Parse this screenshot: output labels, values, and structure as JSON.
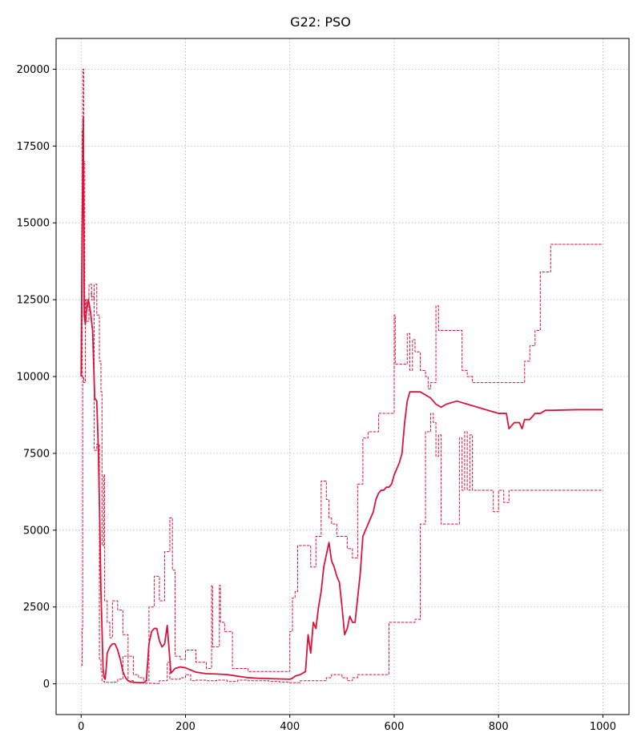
{
  "chart_data": {
    "type": "line",
    "title": "G22: PSO",
    "xlabel": "",
    "ylabel": "",
    "xlim": [
      -48,
      1050
    ],
    "ylim": [
      -1000,
      21000
    ],
    "grid": true,
    "line_color": "#dc143c",
    "x_ticks": [
      {
        "value": 0,
        "label": "0"
      },
      {
        "value": 200,
        "label": "200"
      },
      {
        "value": 400,
        "label": "400"
      },
      {
        "value": 600,
        "label": "600"
      },
      {
        "value": 800,
        "label": "800"
      },
      {
        "value": 1000,
        "label": "1000"
      }
    ],
    "y_ticks": [
      {
        "value": 0,
        "label": "0"
      },
      {
        "value": 2500,
        "label": "2500"
      },
      {
        "value": 5000,
        "label": "5000"
      },
      {
        "value": 7500,
        "label": "7500"
      },
      {
        "value": 10000,
        "label": "10000"
      },
      {
        "value": 12500,
        "label": "12500"
      },
      {
        "value": 15000,
        "label": "15000"
      },
      {
        "value": 17500,
        "label": "17500"
      },
      {
        "value": 20000,
        "label": "20000"
      }
    ],
    "series": [
      {
        "role": "mean",
        "style": "solid",
        "step": false,
        "x": [
          0,
          2,
          4,
          6,
          8,
          10,
          14,
          18,
          22,
          26,
          30,
          33,
          36,
          38,
          40,
          42,
          44,
          46,
          48,
          50,
          55,
          60,
          65,
          70,
          75,
          80,
          85,
          90,
          95,
          100,
          110,
          120,
          125,
          130,
          135,
          140,
          145,
          150,
          155,
          160,
          165,
          170,
          172,
          175,
          180,
          190,
          200,
          210,
          220,
          240,
          260,
          280,
          300,
          320,
          340,
          360,
          380,
          400,
          405,
          410,
          420,
          430,
          435,
          440,
          445,
          450,
          455,
          460,
          465,
          470,
          475,
          480,
          485,
          490,
          495,
          500,
          505,
          510,
          515,
          520,
          525,
          530,
          535,
          540,
          545,
          550,
          555,
          560,
          565,
          570,
          575,
          580,
          585,
          590,
          595,
          600,
          605,
          610,
          615,
          620,
          625,
          630,
          640,
          650,
          660,
          670,
          680,
          690,
          700,
          720,
          740,
          760,
          780,
          800,
          810,
          815,
          820,
          830,
          840,
          845,
          850,
          860,
          870,
          880,
          890,
          900,
          950,
          1000
        ],
        "y": [
          10000,
          15000,
          18400,
          12000,
          11700,
          12100,
          12500,
          12100,
          11500,
          9300,
          9200,
          7600,
          5000,
          3000,
          1800,
          500,
          200,
          150,
          500,
          1000,
          1200,
          1300,
          1300,
          1100,
          800,
          400,
          200,
          100,
          60,
          50,
          40,
          40,
          100,
          1300,
          1700,
          1800,
          1800,
          1400,
          1200,
          1300,
          1900,
          800,
          350,
          400,
          500,
          550,
          520,
          450,
          380,
          330,
          320,
          300,
          250,
          200,
          180,
          170,
          160,
          150,
          180,
          250,
          300,
          400,
          1600,
          1000,
          2000,
          1800,
          2500,
          3000,
          3800,
          4200,
          4600,
          4000,
          3800,
          3500,
          3300,
          2500,
          1600,
          1800,
          2200,
          2000,
          2000,
          2800,
          3600,
          4800,
          5000,
          5200,
          5400,
          5600,
          6000,
          6200,
          6300,
          6300,
          6400,
          6400,
          6500,
          6800,
          7000,
          7200,
          7500,
          8500,
          9200,
          9500,
          9500,
          9500,
          9400,
          9300,
          9100,
          9000,
          9100,
          9200,
          9100,
          9000,
          8900,
          8800,
          8800,
          8800,
          8300,
          8500,
          8500,
          8300,
          8600,
          8600,
          8800,
          8800,
          8900,
          8900,
          8920,
          8920
        ]
      },
      {
        "role": "upper",
        "style": "dashed",
        "step": true,
        "x": [
          0,
          2,
          3,
          5,
          7,
          10,
          15,
          20,
          25,
          30,
          35,
          38,
          40,
          43,
          45,
          50,
          55,
          60,
          70,
          80,
          90,
          100,
          110,
          120,
          130,
          140,
          150,
          160,
          170,
          175,
          180,
          190,
          200,
          220,
          240,
          250,
          252,
          265,
          267,
          275,
          290,
          320,
          340,
          360,
          380,
          400,
          405,
          410,
          415,
          420,
          430,
          440,
          450,
          460,
          470,
          475,
          480,
          490,
          500,
          510,
          520,
          530,
          540,
          550,
          560,
          570,
          580,
          590,
          600,
          602,
          605,
          610,
          620,
          625,
          630,
          635,
          640,
          650,
          660,
          665,
          670,
          680,
          685,
          690,
          700,
          720,
          730,
          740,
          750,
          760,
          780,
          800,
          820,
          840,
          850,
          860,
          870,
          880,
          890,
          900,
          950,
          1000
        ],
        "y": [
          10000,
          18000,
          20000,
          17000,
          12000,
          12500,
          13000,
          12500,
          13000,
          12000,
          10500,
          9500,
          4500,
          6800,
          2700,
          2000,
          1500,
          2700,
          2400,
          1600,
          900,
          300,
          200,
          100,
          2500,
          3500,
          2700,
          4300,
          5400,
          3700,
          900,
          800,
          1100,
          700,
          500,
          3200,
          1200,
          3200,
          2000,
          1700,
          500,
          400,
          400,
          400,
          400,
          1700,
          2800,
          3000,
          4500,
          4500,
          4500,
          3800,
          4800,
          6600,
          6000,
          5400,
          5200,
          4800,
          4800,
          4400,
          4100,
          6500,
          8000,
          8200,
          8200,
          8800,
          8800,
          8800,
          12000,
          10400,
          10400,
          10400,
          10400,
          11400,
          10200,
          11200,
          10800,
          10200,
          10000,
          9600,
          9800,
          12300,
          11500,
          11500,
          11500,
          11500,
          10200,
          10000,
          9800,
          9800,
          9800,
          9800,
          9800,
          9800,
          10500,
          11000,
          11500,
          13400,
          13400,
          14300,
          14300,
          14300
        ]
      },
      {
        "role": "lower",
        "style": "dashed",
        "step": true,
        "x": [
          0,
          2,
          3,
          5,
          8,
          10,
          15,
          20,
          25,
          30,
          35,
          38,
          40,
          43,
          45,
          50,
          60,
          70,
          80,
          90,
          100,
          110,
          120,
          130,
          140,
          150,
          160,
          165,
          170,
          180,
          190,
          200,
          210,
          220,
          240,
          260,
          280,
          300,
          320,
          340,
          360,
          380,
          400,
          420,
          440,
          460,
          470,
          480,
          490,
          500,
          510,
          520,
          530,
          540,
          560,
          580,
          590,
          600,
          620,
          640,
          650,
          660,
          670,
          675,
          680,
          685,
          690,
          700,
          720,
          725,
          730,
          735,
          740,
          745,
          750,
          760,
          780,
          790,
          800,
          810,
          820,
          1000
        ],
        "y": [
          600,
          1800,
          10000,
          9800,
          12500,
          11800,
          12700,
          12600,
          7600,
          7800,
          800,
          400,
          100,
          80,
          50,
          50,
          60,
          150,
          900,
          100,
          50,
          30,
          20,
          20,
          10,
          100,
          100,
          700,
          150,
          150,
          200,
          300,
          100,
          120,
          100,
          120,
          80,
          120,
          100,
          100,
          80,
          60,
          40,
          100,
          100,
          100,
          200,
          300,
          300,
          200,
          100,
          200,
          300,
          300,
          300,
          300,
          2000,
          2000,
          2000,
          2100,
          5200,
          8200,
          8800,
          8500,
          7400,
          8100,
          5200,
          5200,
          5200,
          8000,
          6300,
          8200,
          6300,
          8100,
          6300,
          6300,
          6300,
          5600,
          6300,
          5900,
          6300,
          6300
        ]
      }
    ]
  }
}
